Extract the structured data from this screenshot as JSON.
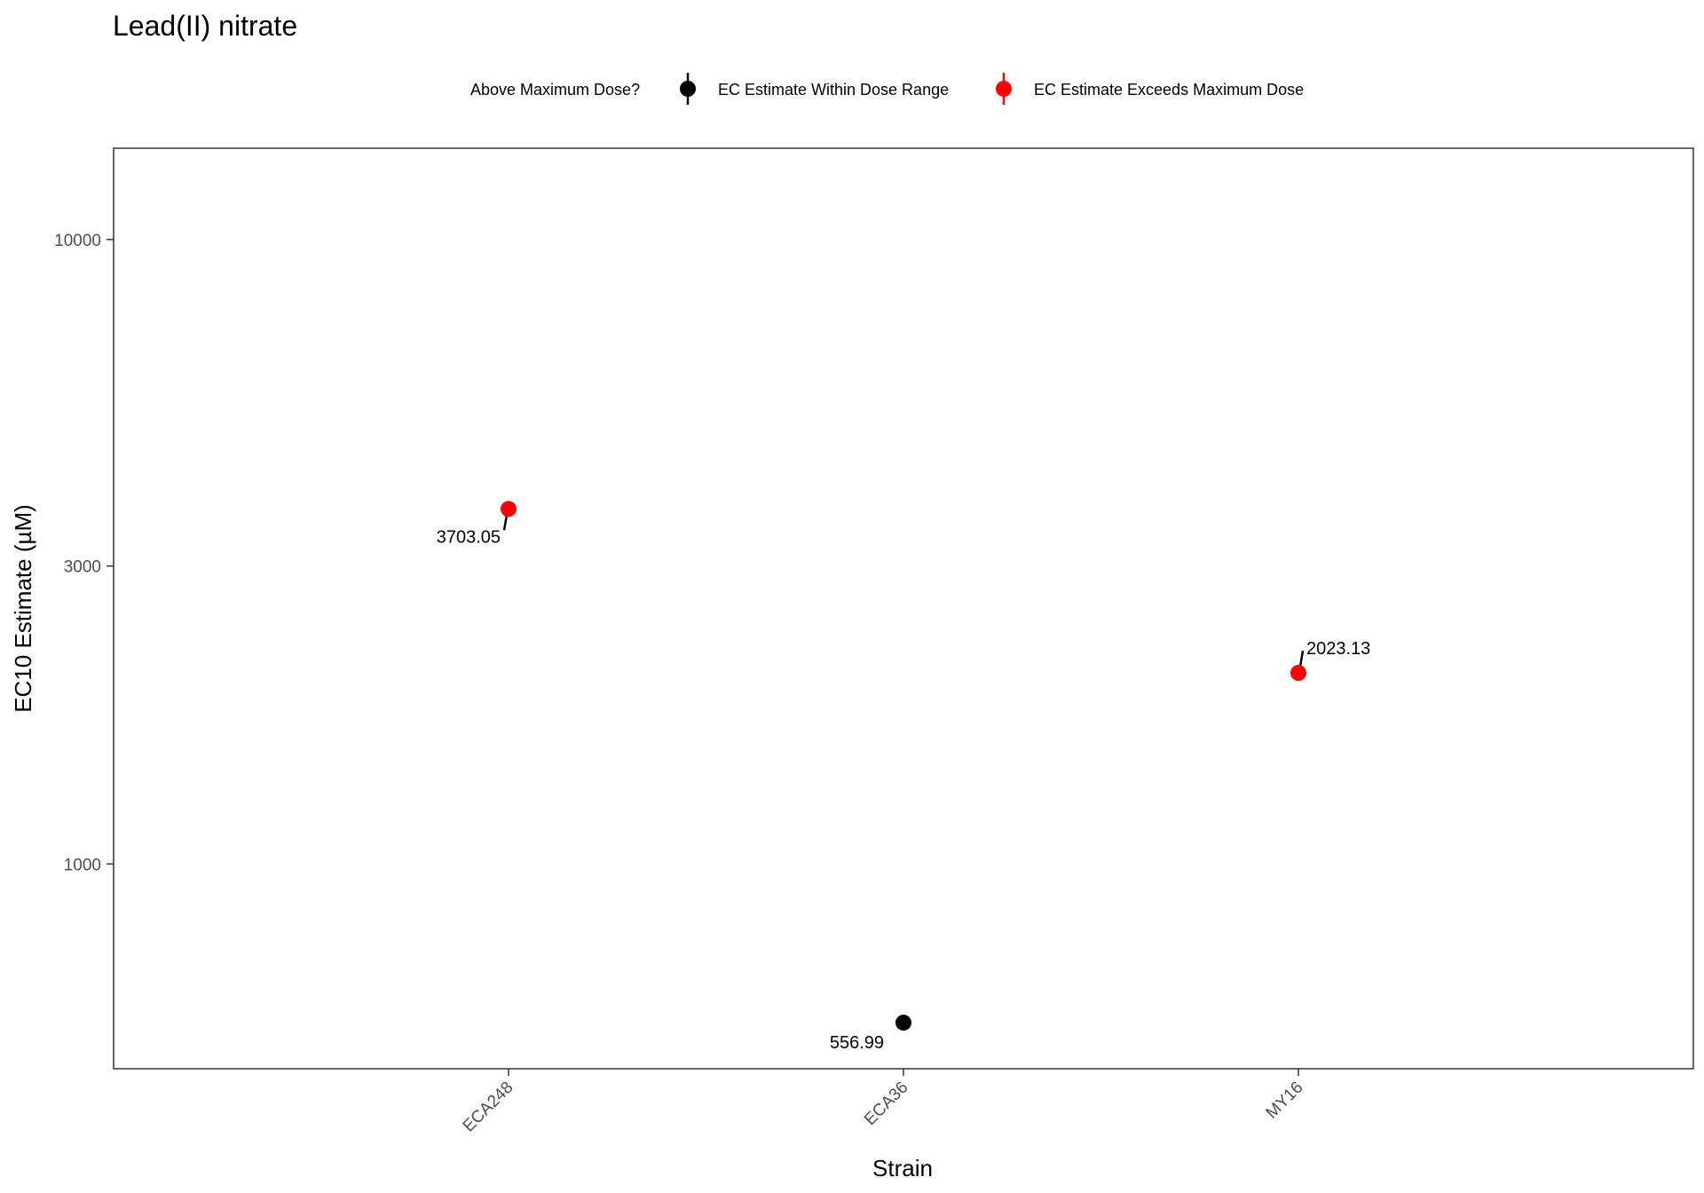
{
  "chart_data": {
    "type": "scatter",
    "title": "Lead(II) nitrate",
    "xlabel": "Strain",
    "ylabel": "EC10 Estimate (µM)",
    "y_scale": "log10",
    "ylim": [
      470,
      14000
    ],
    "yticks": [
      1000,
      3000,
      10000
    ],
    "ytick_labels": [
      "1000",
      "3000",
      "10000"
    ],
    "categories": [
      "ECA248",
      "ECA36",
      "MY16"
    ],
    "legend": {
      "title": "Above Maximum Dose?",
      "position": "top",
      "entries": [
        {
          "label": "EC Estimate Within Dose Range",
          "color": "#000000"
        },
        {
          "label": "EC Estimate Exceeds Maximum Dose",
          "color": "#ff0000"
        }
      ]
    },
    "points": [
      {
        "strain": "ECA248",
        "value": 3703.05,
        "label": "3703.05",
        "exceeds_max": true,
        "label_side": "left-below"
      },
      {
        "strain": "ECA36",
        "value": 556.99,
        "label": "556.99",
        "exceeds_max": false,
        "label_side": "left-below"
      },
      {
        "strain": "MY16",
        "value": 2023.13,
        "label": "2023.13",
        "exceeds_max": true,
        "label_side": "right-above"
      }
    ],
    "grid": false,
    "colors": {
      "within": "#000000",
      "exceeds": "#ff0000",
      "axis": "#333333",
      "tick_text": "#4d4d4d"
    }
  }
}
